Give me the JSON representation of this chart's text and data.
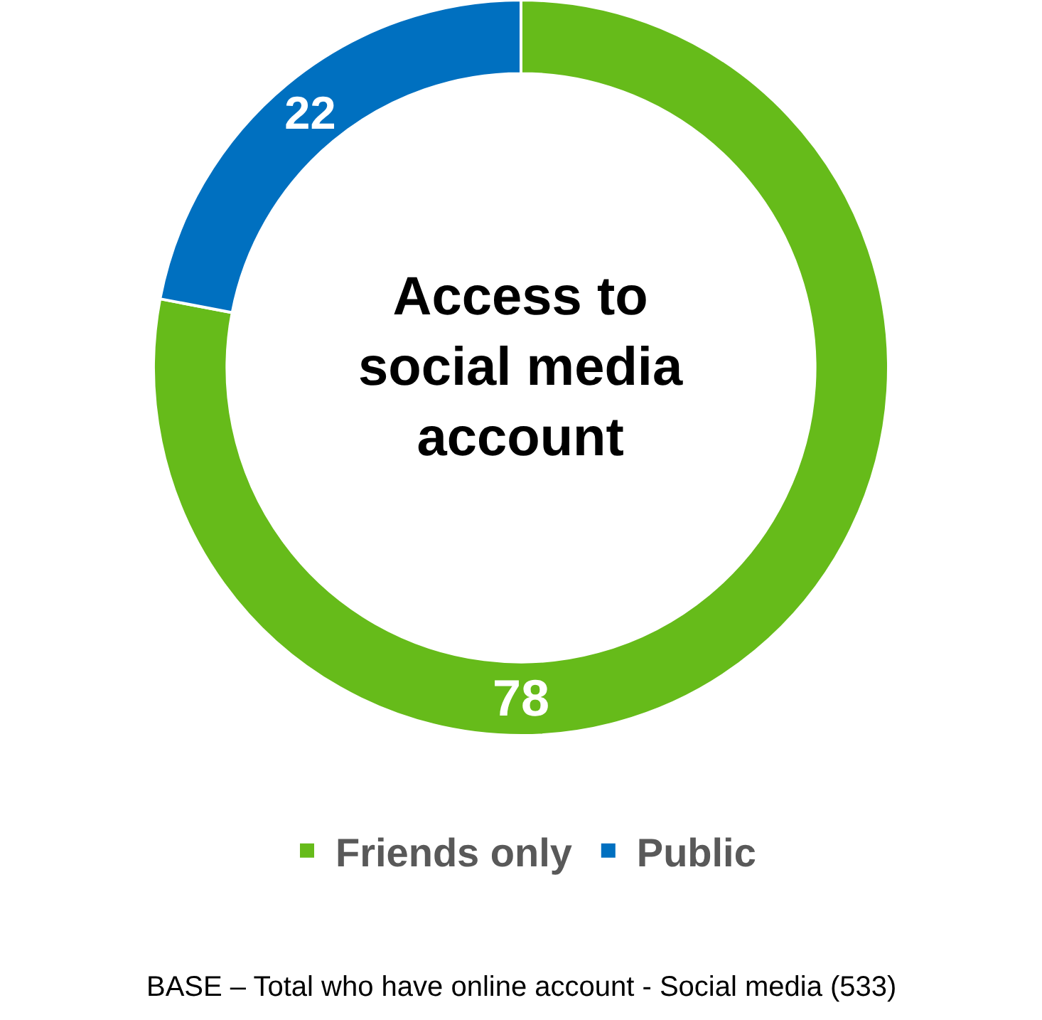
{
  "chart_data": {
    "type": "donut",
    "title": "Access to social media account",
    "categories": [
      "Friends only",
      "Public"
    ],
    "values": [
      78,
      22
    ],
    "colors": [
      "#66bb1a",
      "#0070c0"
    ],
    "data_labels": true,
    "legend": "bottom",
    "annotations": [
      "BASE – Total who have online account - Social media (533)"
    ]
  }
}
